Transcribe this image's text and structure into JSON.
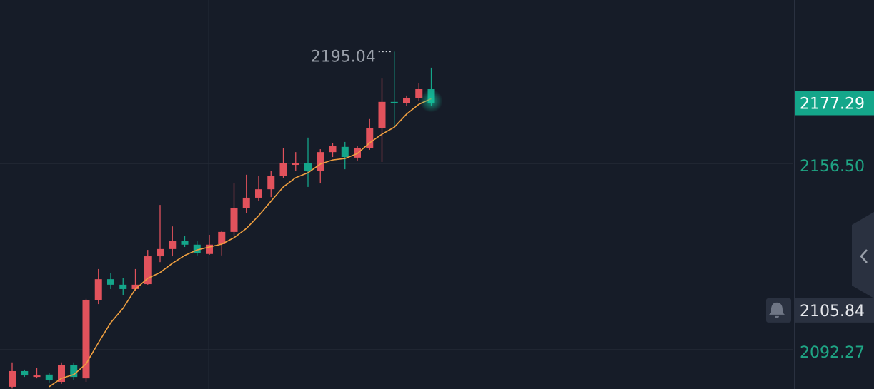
{
  "chart_data": {
    "type": "candlestick",
    "open": [
      2079.5,
      2084.9,
      2082.9,
      2083.7,
      2081.2,
      2086.9,
      2082.4,
      2109.3,
      2116.6,
      2114.7,
      2113.2,
      2114.9,
      2124.5,
      2127.0,
      2129.9,
      2128.5,
      2125.3,
      2128.7,
      2132.9,
      2141.2,
      2144.7,
      2147.6,
      2152.1,
      2156.0,
      2156.5,
      2154.0,
      2160.4,
      2162.2,
      2158.5,
      2161.9,
      2168.8,
      2177.7,
      2177.2,
      2179.1,
      2182.1
    ],
    "high": [
      2087.9,
      2085.4,
      2085.9,
      2084.4,
      2087.9,
      2087.9,
      2109.8,
      2120.1,
      2118.6,
      2116.9,
      2120.1,
      2126.7,
      2142.2,
      2134.8,
      2131.4,
      2129.9,
      2131.9,
      2133.4,
      2149.6,
      2152.6,
      2152.1,
      2153.8,
      2161.7,
      2160.4,
      2165.4,
      2161.4,
      2163.4,
      2163.9,
      2162.4,
      2171.8,
      2186.0,
      2195.04,
      2179.9,
      2184.3,
      2189.5
    ],
    "low": [
      2078.9,
      2082.9,
      2082.4,
      2081.0,
      2080.5,
      2081.7,
      2081.2,
      2108.0,
      2113.2,
      2111.0,
      2112.7,
      2114.7,
      2122.5,
      2124.5,
      2127.7,
      2124.8,
      2125.0,
      2124.8,
      2131.7,
      2139.5,
      2143.5,
      2144.9,
      2151.6,
      2153.8,
      2148.4,
      2149.6,
      2158.7,
      2154.5,
      2157.5,
      2161.2,
      2157.0,
      2168.6,
      2176.2,
      2178.1,
      2176.4
    ],
    "close": [
      2084.9,
      2083.4,
      2083.4,
      2081.7,
      2086.9,
      2082.9,
      2109.3,
      2116.6,
      2114.7,
      2113.2,
      2114.7,
      2124.5,
      2127.0,
      2129.9,
      2128.5,
      2125.5,
      2128.5,
      2132.9,
      2141.2,
      2144.7,
      2147.6,
      2152.1,
      2156.7,
      2156.5,
      2154.0,
      2160.4,
      2162.4,
      2158.7,
      2161.7,
      2168.8,
      2177.7,
      2177.2,
      2179.1,
      2182.1,
      2177.29
    ],
    "up_color": "#e2525c",
    "down_color": "#14a68a",
    "ma": {
      "color": "#f0a040",
      "values": [
        null,
        null,
        null,
        2079.5,
        2082.4,
        2083.7,
        2087.4,
        2094.7,
        2101.6,
        2106.6,
        2113.2,
        2116.9,
        2118.9,
        2122.1,
        2124.8,
        2126.7,
        2127.7,
        2128.7,
        2130.9,
        2134.1,
        2138.5,
        2143.5,
        2148.4,
        2151.6,
        2153.3,
        2156.3,
        2157.7,
        2158.2,
        2159.9,
        2163.6,
        2166.6,
        2169.0,
        2173.5,
        2176.9,
        2178.8
      ]
    },
    "ylim": [
      2078.74,
      2212.85
    ],
    "yticks": [
      {
        "value": 2156.5,
        "label": "2156.50"
      },
      2092.27
    ],
    "grid": true,
    "high_label": 2195.04,
    "last_price": 2177.29,
    "alert_price": 2105.84
  }
}
